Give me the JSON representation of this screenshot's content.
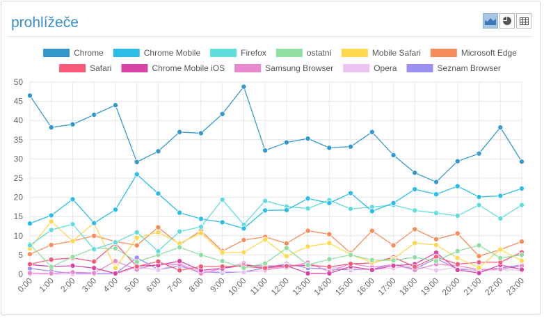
{
  "widget": {
    "title": "prohlížeče",
    "view_buttons": [
      {
        "icon": "area-chart-icon",
        "active": true
      },
      {
        "icon": "pie-chart-icon",
        "active": false
      },
      {
        "icon": "table-icon",
        "active": false
      }
    ]
  },
  "chart_data": {
    "type": "line",
    "title": "",
    "xlabel": "",
    "ylabel": "",
    "ylim": [
      0,
      50
    ],
    "y_ticks": [
      0,
      5,
      10,
      15,
      20,
      25,
      30,
      35,
      40,
      45,
      50
    ],
    "grid": true,
    "legend_position": "top",
    "x": [
      "0:00",
      "1:00",
      "2:00",
      "3:00",
      "4:00",
      "5:00",
      "6:00",
      "7:00",
      "8:00",
      "9:00",
      "10:00",
      "11:00",
      "12:00",
      "13:00",
      "14:00",
      "15:00",
      "16:00",
      "17:00",
      "18:00",
      "19:00",
      "20:00",
      "21:00",
      "22:00",
      "23:00"
    ],
    "series": [
      {
        "name": "Chrome",
        "color": "#3399cc",
        "values": [
          46.5,
          38.2,
          39,
          41.5,
          44,
          29.2,
          32,
          37,
          36.7,
          41.7,
          48.8,
          32.2,
          34.3,
          35.3,
          32.9,
          33.2,
          37,
          31,
          26.4,
          24,
          29.4,
          31.4,
          38.2,
          29.3
        ]
      },
      {
        "name": "Chrome Mobile",
        "color": "#2abde6",
        "values": [
          13.2,
          15.3,
          19.5,
          13.3,
          16.8,
          26,
          21,
          16,
          14.4,
          13.5,
          11.9,
          16.6,
          16.7,
          19.7,
          18.5,
          21.1,
          16.4,
          18.5,
          22.1,
          20.8,
          22.9,
          20.1,
          20.4,
          22.3
        ]
      },
      {
        "name": "Firefox",
        "color": "#5fdcde",
        "values": [
          7.5,
          11.5,
          13,
          6.5,
          8.3,
          10.9,
          6,
          11.1,
          12.3,
          19.4,
          12.9,
          19.1,
          17.6,
          17.1,
          19.3,
          17,
          17.5,
          18,
          16.6,
          15.9,
          15.2,
          18,
          14.5,
          18
        ]
      },
      {
        "name": "ostatní",
        "color": "#8edfa0",
        "values": [
          7.8,
          1.9,
          4.5,
          6.7,
          6.7,
          3.2,
          5,
          7,
          5,
          3.4,
          1.6,
          2.8,
          6.8,
          2.4,
          3.9,
          5,
          3.7,
          3.6,
          4.4,
          3.4,
          6,
          7.5,
          4.2,
          5
        ]
      },
      {
        "name": "Mobile Safari",
        "color": "#ffd84d",
        "values": [
          6.7,
          13.7,
          8.6,
          13.3,
          1.6,
          9.5,
          10.9,
          8,
          10.7,
          5.6,
          5.7,
          9,
          4.7,
          7.2,
          8.1,
          5.1,
          3.1,
          4,
          8.1,
          7.6,
          4.2,
          1.7,
          6.4,
          3.5
        ]
      },
      {
        "name": "Microsoft Edge",
        "color": "#f78c5a",
        "values": [
          5.2,
          7.6,
          8.6,
          10,
          8.5,
          7.5,
          12.2,
          7.7,
          11.3,
          6,
          8.9,
          9.7,
          8,
          11.3,
          10.4,
          5.5,
          11.3,
          7.5,
          11.7,
          9.1,
          10.6,
          4.7,
          6.4,
          8.5
        ]
      },
      {
        "name": "Safari",
        "color": "#f75b7a",
        "values": [
          2.6,
          3.8,
          4.2,
          3.3,
          8,
          2,
          3.3,
          1,
          2,
          2,
          2,
          1.6,
          2.1,
          2.3,
          1.9,
          2.7,
          2.9,
          4.4,
          1.9,
          4.5,
          2.6,
          3.1,
          3.1,
          5.7
        ]
      },
      {
        "name": "Chrome Mobile iOS",
        "color": "#d844a6",
        "values": [
          2.5,
          2,
          2.2,
          1.6,
          0.2,
          2.1,
          2.3,
          3.4,
          1,
          1.5,
          2.3,
          2.1,
          2.2,
          0.2,
          0.2,
          2,
          1.1,
          2.2,
          2.6,
          5.6,
          1.1,
          0.3,
          2.4,
          1.2
        ]
      },
      {
        "name": "Samsung Browser",
        "color": "#e88ad0",
        "values": [
          0.3,
          0.2,
          0.5,
          0.3,
          3.4,
          1.2,
          2.7,
          2.5,
          0.2,
          1.5,
          2.8,
          1.2,
          1.8,
          3,
          0.6,
          2.8,
          1.8,
          2.5,
          1.1,
          2.6,
          2.2,
          1.2,
          1.3,
          2.1
        ]
      },
      {
        "name": "Opera",
        "color": "#ebc2f0",
        "values": [
          0,
          0,
          0,
          0,
          0,
          1.8,
          1.1,
          2.8,
          0.5,
          0.8,
          0.5,
          0.9,
          2.3,
          2.5,
          1.9,
          1.4,
          1.2,
          1.6,
          2.2,
          1,
          1.8,
          0.7,
          1.2,
          1
        ]
      },
      {
        "name": "Seznam Browser",
        "color": "#9c8ff2",
        "values": [
          1.5,
          0.8,
          0.2,
          0.2,
          0.2,
          4.3,
          1.2,
          2.1,
          0.6,
          0.4,
          0.6,
          1.6,
          2.7,
          1.6,
          1.3,
          1.1,
          1.3,
          2.6,
          1.3,
          4.1,
          1.3,
          1,
          1.6,
          2.4
        ]
      }
    ]
  }
}
